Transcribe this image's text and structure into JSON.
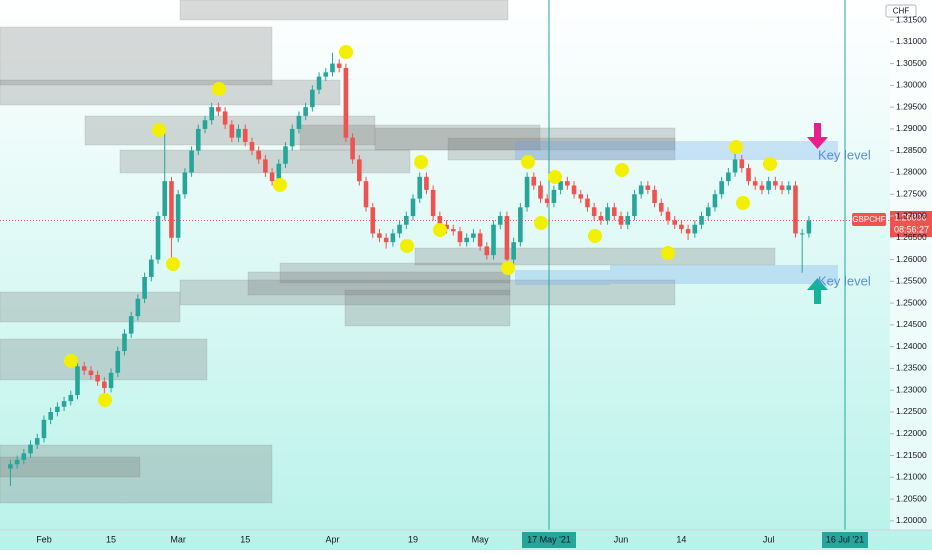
{
  "chart_data": {
    "type": "candlestick",
    "symbol": "GBPCHF",
    "currency": "CHF",
    "countdown": "08:56:27",
    "last_price": 1.26896,
    "up_color": "#26a69a",
    "down_color": "#ef5350",
    "annotations": [
      "Key level",
      "Key level"
    ],
    "time_marker": "16 Jul '21",
    "ylim": [
      1.1979,
      1.3196
    ],
    "yticks": [
      {
        "value": 1.315,
        "label": "1.31500"
      },
      {
        "value": 1.31,
        "label": "1.31000"
      },
      {
        "value": 1.305,
        "label": "1.30500"
      },
      {
        "value": 1.3,
        "label": "1.30000"
      },
      {
        "value": 1.295,
        "label": "1.29500"
      },
      {
        "value": 1.29,
        "label": "1.29000"
      },
      {
        "value": 1.285,
        "label": "1.28500"
      },
      {
        "value": 1.28,
        "label": "1.28000"
      },
      {
        "value": 1.275,
        "label": "1.27500"
      },
      {
        "value": 1.27,
        "label": "1.27000"
      },
      {
        "value": 1.265,
        "label": "1.26500"
      },
      {
        "value": 1.26,
        "label": "1.26000"
      },
      {
        "value": 1.255,
        "label": "1.25500"
      },
      {
        "value": 1.25,
        "label": "1.25000"
      },
      {
        "value": 1.245,
        "label": "1.24500"
      },
      {
        "value": 1.24,
        "label": "1.24000"
      },
      {
        "value": 1.235,
        "label": "1.23500"
      },
      {
        "value": 1.23,
        "label": "1.23000"
      },
      {
        "value": 1.225,
        "label": "1.22500"
      },
      {
        "value": 1.22,
        "label": "1.22000"
      },
      {
        "value": 1.215,
        "label": "1.21500"
      },
      {
        "value": 1.21,
        "label": "1.21000"
      },
      {
        "value": 1.205,
        "label": "1.20500"
      },
      {
        "value": 1.2,
        "label": "1.20000"
      }
    ],
    "categories": [
      null,
      null,
      null,
      null,
      null,
      "Feb",
      null,
      null,
      null,
      null,
      null,
      null,
      null,
      null,
      null,
      "15",
      null,
      null,
      null,
      null,
      null,
      null,
      null,
      null,
      null,
      "Mar",
      null,
      null,
      null,
      null,
      null,
      null,
      null,
      null,
      null,
      "15",
      null,
      null,
      null,
      null,
      null,
      null,
      null,
      null,
      null,
      null,
      null,
      null,
      "Apr",
      null,
      null,
      null,
      null,
      null,
      null,
      null,
      null,
      null,
      null,
      null,
      "19",
      null,
      null,
      null,
      null,
      null,
      null,
      null,
      null,
      null,
      "May",
      null,
      null,
      null,
      null,
      null,
      null,
      null,
      null,
      null,
      "17 May '21",
      null,
      null,
      null,
      null,
      null,
      null,
      null,
      null,
      null,
      null,
      "Jun",
      null,
      null,
      null,
      null,
      null,
      null,
      null,
      null,
      "14",
      null,
      null,
      null,
      null,
      null,
      null,
      null,
      null,
      null,
      null,
      null,
      null,
      "Jul",
      null,
      null,
      null,
      null,
      null,
      null
    ],
    "open": [
      1.212,
      1.213,
      1.214,
      1.2155,
      1.2175,
      1.219,
      1.2232,
      1.225,
      1.2262,
      1.2275,
      1.2289,
      1.2355,
      1.2345,
      1.2335,
      1.232,
      1.2305,
      1.234,
      1.239,
      1.243,
      1.247,
      1.251,
      1.256,
      1.26,
      1.27,
      1.278,
      1.265,
      1.275,
      1.28,
      1.285,
      1.29,
      1.292,
      1.295,
      1.294,
      1.291,
      1.288,
      1.29,
      1.287,
      1.285,
      1.283,
      1.28,
      1.278,
      1.282,
      1.286,
      1.29,
      1.293,
      1.295,
      1.299,
      1.302,
      1.303,
      1.305,
      1.304,
      1.288,
      1.283,
      1.278,
      1.272,
      1.266,
      1.265,
      1.264,
      1.266,
      1.268,
      1.27,
      1.274,
      1.279,
      1.276,
      1.27,
      1.268,
      1.267,
      1.2665,
      1.264,
      1.265,
      1.266,
      1.263,
      1.261,
      1.268,
      1.27,
      1.26,
      1.264,
      1.272,
      1.279,
      1.277,
      1.274,
      1.273,
      1.276,
      1.278,
      1.277,
      1.275,
      1.274,
      1.272,
      1.27,
      1.269,
      1.272,
      1.27,
      1.268,
      1.27,
      1.275,
      1.277,
      1.276,
      1.273,
      1.271,
      1.269,
      1.268,
      1.267,
      1.266,
      1.268,
      1.27,
      1.272,
      1.275,
      1.278,
      1.28,
      1.283,
      1.281,
      1.278,
      1.277,
      1.276,
      1.278,
      1.277,
      1.276,
      1.277,
      1.266,
      1.266
    ],
    "high": [
      1.214,
      1.215,
      1.2165,
      1.2185,
      1.22,
      1.2242,
      1.226,
      1.2272,
      1.2285,
      1.2299,
      1.2372,
      1.2365,
      1.2355,
      1.2345,
      1.233,
      1.235,
      1.24,
      1.244,
      1.248,
      1.252,
      1.257,
      1.261,
      1.271,
      1.289,
      1.279,
      1.276,
      1.281,
      1.286,
      1.291,
      1.293,
      1.296,
      1.296,
      1.295,
      1.292,
      1.291,
      1.291,
      1.288,
      1.286,
      1.284,
      1.281,
      1.283,
      1.287,
      1.291,
      1.294,
      1.296,
      1.3,
      1.303,
      1.304,
      1.3075,
      1.306,
      1.305,
      1.289,
      1.284,
      1.279,
      1.273,
      1.267,
      1.266,
      1.267,
      1.269,
      1.271,
      1.275,
      1.28,
      1.28,
      1.277,
      1.271,
      1.269,
      1.268,
      1.2675,
      1.266,
      1.267,
      1.267,
      1.264,
      1.269,
      1.271,
      1.271,
      1.265,
      1.273,
      1.28,
      1.28,
      1.278,
      1.275,
      1.277,
      1.279,
      1.279,
      1.278,
      1.276,
      1.275,
      1.273,
      1.271,
      1.273,
      1.273,
      1.271,
      1.271,
      1.276,
      1.278,
      1.278,
      1.277,
      1.274,
      1.272,
      1.27,
      1.269,
      1.268,
      1.269,
      1.271,
      1.273,
      1.276,
      1.279,
      1.281,
      1.2845,
      1.284,
      1.282,
      1.279,
      1.278,
      1.279,
      1.279,
      1.278,
      1.278,
      1.278,
      1.267,
      1.27
    ],
    "low": [
      1.208,
      1.212,
      1.213,
      1.2145,
      1.2165,
      1.218,
      1.2222,
      1.224,
      1.2252,
      1.2265,
      1.2279,
      1.2335,
      1.2325,
      1.231,
      1.228,
      1.2295,
      1.233,
      1.238,
      1.242,
      1.246,
      1.25,
      1.255,
      1.259,
      1.269,
      1.26,
      1.264,
      1.274,
      1.279,
      1.284,
      1.289,
      1.291,
      1.293,
      1.29,
      1.287,
      1.287,
      1.286,
      1.284,
      1.282,
      1.279,
      1.277,
      1.277,
      1.281,
      1.285,
      1.289,
      1.292,
      1.294,
      1.298,
      1.301,
      1.302,
      1.303,
      1.287,
      1.282,
      1.277,
      1.271,
      1.265,
      1.264,
      1.2625,
      1.263,
      1.265,
      1.267,
      1.269,
      1.273,
      1.275,
      1.269,
      1.267,
      1.266,
      1.2655,
      1.263,
      1.263,
      1.264,
      1.262,
      1.26,
      1.26,
      1.267,
      1.258,
      1.259,
      1.263,
      1.271,
      1.276,
      1.273,
      1.272,
      1.272,
      1.275,
      1.276,
      1.274,
      1.273,
      1.271,
      1.269,
      1.268,
      1.268,
      1.269,
      1.267,
      1.267,
      1.269,
      1.274,
      1.275,
      1.272,
      1.27,
      1.268,
      1.267,
      1.266,
      1.2645,
      1.265,
      1.267,
      1.269,
      1.271,
      1.274,
      1.277,
      1.279,
      1.28,
      1.277,
      1.276,
      1.275,
      1.275,
      1.276,
      1.275,
      1.275,
      1.265,
      1.257,
      1.265
    ],
    "close": [
      1.213,
      1.214,
      1.2155,
      1.2175,
      1.219,
      1.2232,
      1.225,
      1.2262,
      1.2275,
      1.2289,
      1.2355,
      1.2345,
      1.2335,
      1.232,
      1.2305,
      1.234,
      1.239,
      1.243,
      1.247,
      1.251,
      1.256,
      1.26,
      1.27,
      1.278,
      1.265,
      1.275,
      1.28,
      1.285,
      1.29,
      1.292,
      1.295,
      1.294,
      1.291,
      1.288,
      1.29,
      1.287,
      1.285,
      1.283,
      1.28,
      1.278,
      1.282,
      1.286,
      1.29,
      1.293,
      1.295,
      1.299,
      1.302,
      1.303,
      1.305,
      1.304,
      1.288,
      1.283,
      1.278,
      1.272,
      1.266,
      1.265,
      1.264,
      1.266,
      1.268,
      1.27,
      1.274,
      1.279,
      1.276,
      1.27,
      1.268,
      1.267,
      1.2665,
      1.264,
      1.265,
      1.266,
      1.263,
      1.261,
      1.268,
      1.27,
      1.26,
      1.264,
      1.272,
      1.279,
      1.277,
      1.274,
      1.273,
      1.276,
      1.278,
      1.277,
      1.275,
      1.274,
      1.272,
      1.27,
      1.269,
      1.272,
      1.27,
      1.268,
      1.27,
      1.275,
      1.277,
      1.276,
      1.273,
      1.271,
      1.269,
      1.268,
      1.267,
      1.266,
      1.268,
      1.27,
      1.272,
      1.275,
      1.278,
      1.28,
      1.283,
      1.281,
      1.278,
      1.277,
      1.276,
      1.278,
      1.277,
      1.276,
      1.277,
      1.266,
      1.266,
      1.26896
    ]
  }
}
